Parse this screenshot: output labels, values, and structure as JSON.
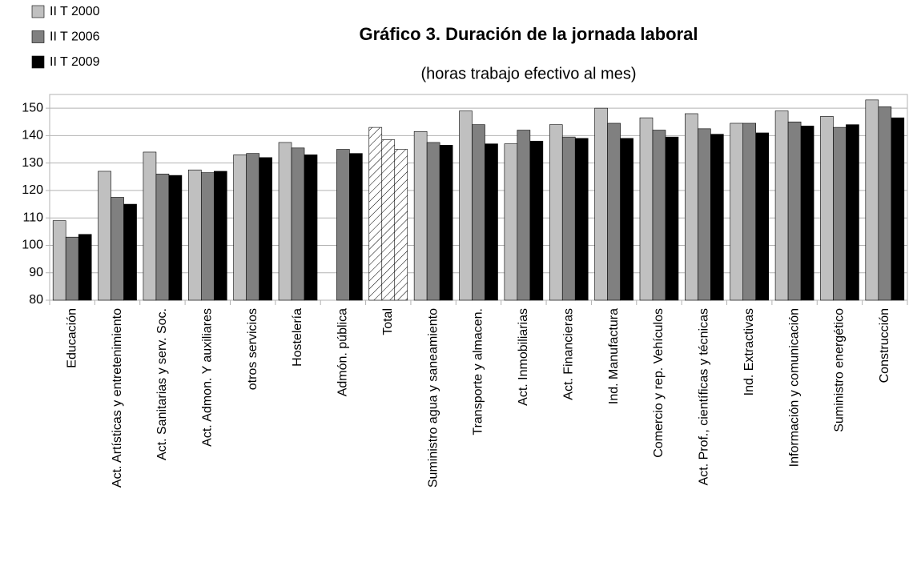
{
  "chart_data": {
    "type": "bar",
    "title": "Gráfico 3. Duración de la jornada laboral",
    "subtitle": "(horas trabajo efectivo al mes)",
    "categories": [
      "Educación",
      "Act. Artísticas y entretenimiento",
      "Act. Sanitarias y serv. Soc.",
      "Act. Admon. Y auxiliares",
      "otros servicios",
      "Hostelería",
      "Admón. pública",
      "Total",
      "Suministro agua y saneamiento",
      "Transporte y almacen.",
      "Act. Inmobiliarias",
      "Act. Financieras",
      "Ind. Manufactura",
      "Comercio y rep. Vehículos",
      "Act. Prof., científicas y técnicas",
      "Ind. Extractivas",
      "Información y comunicación",
      "Suministro energético",
      "Construcción"
    ],
    "series": [
      {
        "name": "II T 2000",
        "color": "#c0c0c0",
        "values": [
          109,
          127,
          134,
          127.5,
          133,
          137.5,
          null,
          143,
          141.5,
          149,
          137,
          144,
          150,
          146.5,
          148,
          144.5,
          149,
          147,
          153
        ]
      },
      {
        "name": "II T 2006",
        "color": "#808080",
        "values": [
          103,
          117.5,
          126,
          126.5,
          133.5,
          135.5,
          135,
          138.5,
          137.5,
          144,
          142,
          139.5,
          144.5,
          142,
          142.5,
          144.5,
          145,
          143,
          150.5
        ]
      },
      {
        "name": "II T 2009",
        "color": "#000000",
        "values": [
          104,
          115,
          125.5,
          127,
          132,
          133,
          133.5,
          135,
          136.5,
          137,
          138,
          139,
          139,
          139.5,
          140.5,
          141,
          143.5,
          144,
          146.5
        ]
      }
    ],
    "hatched_categories": [
      "Total"
    ],
    "ylim": [
      80,
      155
    ],
    "yticks": [
      80,
      90,
      100,
      110,
      120,
      130,
      140,
      150
    ],
    "grid": true
  }
}
